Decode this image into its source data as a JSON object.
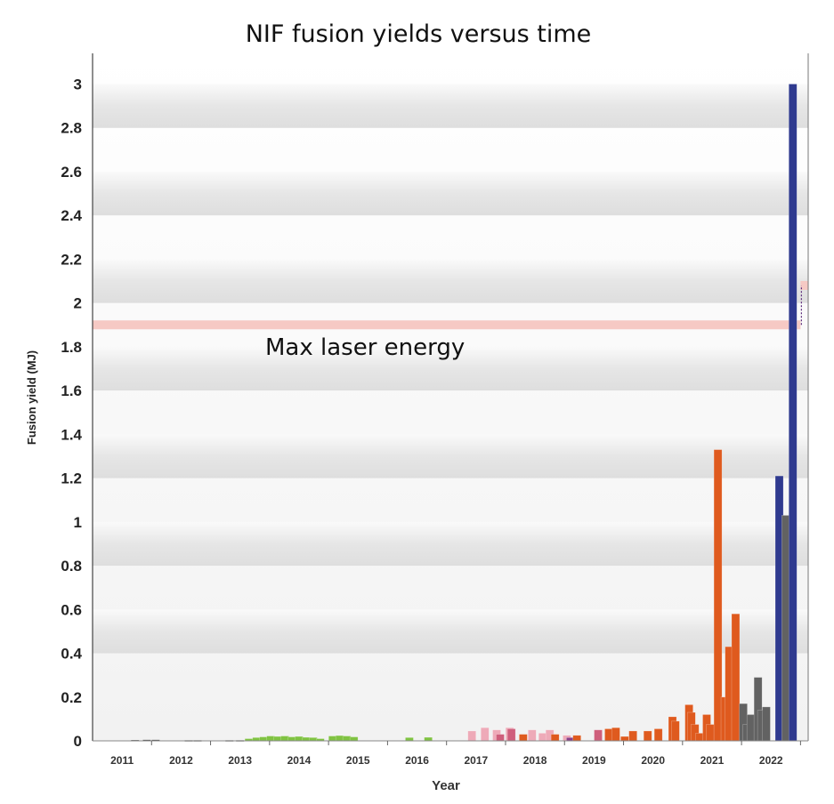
{
  "chart_data": {
    "type": "bar",
    "title": "NIF fusion yields versus time",
    "xlabel": "Year",
    "ylabel": "Fusion yield (MJ)",
    "xlim": [
      2011,
      2023.13
    ],
    "ylim": [
      0,
      3.14
    ],
    "grid": "alternating horizontal bands",
    "yticks": [
      "0",
      "0.2",
      "0.4",
      "0.6",
      "0.8",
      "1",
      "1.2",
      "1.4",
      "1.6",
      "1.8",
      "2",
      "2.2",
      "2.4",
      "2.6",
      "2.8",
      "3"
    ],
    "xticks": [
      "2011",
      "2012",
      "2013",
      "2014",
      "2015",
      "2016",
      "2017",
      "2018",
      "2019",
      "2020",
      "2021",
      "2022"
    ],
    "annotation": {
      "text": "Max laser energy",
      "segments": [
        {
          "x": [
            2011,
            2023.0
          ],
          "y": 1.9
        },
        {
          "x": [
            2023.0,
            2023.13
          ],
          "y": 2.08
        }
      ],
      "color": "#f6c9c4"
    },
    "colors": {
      "dark": "#4a4a4a",
      "green": "#80c342",
      "pink": "#eeaab8",
      "darkpink": "#cf5f7c",
      "orange": "#df5a1e",
      "purple": "#8a3f8a",
      "gray": "#626262",
      "blue": "#2f3a8f"
    },
    "bars": [
      {
        "x": 2011.72,
        "y": 0.004,
        "c": "dark"
      },
      {
        "x": 2011.92,
        "y": 0.005,
        "c": "dark"
      },
      {
        "x": 2012.07,
        "y": 0.005,
        "c": "dark"
      },
      {
        "x": 2012.63,
        "y": 0.003,
        "c": "dark"
      },
      {
        "x": 2012.78,
        "y": 0.003,
        "c": "dark"
      },
      {
        "x": 2013.32,
        "y": 0.003,
        "c": "dark"
      },
      {
        "x": 2013.5,
        "y": 0.003,
        "c": "dark"
      },
      {
        "x": 2013.65,
        "y": 0.01,
        "c": "green"
      },
      {
        "x": 2013.78,
        "y": 0.015,
        "c": "green"
      },
      {
        "x": 2013.9,
        "y": 0.018,
        "c": "green"
      },
      {
        "x": 2014.02,
        "y": 0.022,
        "c": "green"
      },
      {
        "x": 2014.14,
        "y": 0.02,
        "c": "green"
      },
      {
        "x": 2014.26,
        "y": 0.022,
        "c": "green"
      },
      {
        "x": 2014.38,
        "y": 0.018,
        "c": "green"
      },
      {
        "x": 2014.5,
        "y": 0.02,
        "c": "green"
      },
      {
        "x": 2014.62,
        "y": 0.016,
        "c": "green"
      },
      {
        "x": 2014.74,
        "y": 0.015,
        "c": "green"
      },
      {
        "x": 2014.86,
        "y": 0.01,
        "c": "green"
      },
      {
        "x": 2015.07,
        "y": 0.022,
        "c": "green"
      },
      {
        "x": 2015.19,
        "y": 0.024,
        "c": "green"
      },
      {
        "x": 2015.31,
        "y": 0.022,
        "c": "green"
      },
      {
        "x": 2015.43,
        "y": 0.018,
        "c": "green"
      },
      {
        "x": 2016.37,
        "y": 0.015,
        "c": "green"
      },
      {
        "x": 2016.69,
        "y": 0.016,
        "c": "green"
      },
      {
        "x": 2017.43,
        "y": 0.045,
        "c": "pink"
      },
      {
        "x": 2017.65,
        "y": 0.06,
        "c": "pink"
      },
      {
        "x": 2017.85,
        "y": 0.05,
        "c": "pink"
      },
      {
        "x": 2017.91,
        "y": 0.03,
        "c": "darkpink"
      },
      {
        "x": 2018.07,
        "y": 0.06,
        "c": "pink"
      },
      {
        "x": 2018.1,
        "y": 0.055,
        "c": "darkpink"
      },
      {
        "x": 2018.3,
        "y": 0.03,
        "c": "orange"
      },
      {
        "x": 2018.45,
        "y": 0.05,
        "c": "pink"
      },
      {
        "x": 2018.63,
        "y": 0.035,
        "c": "pink"
      },
      {
        "x": 2018.75,
        "y": 0.05,
        "c": "pink"
      },
      {
        "x": 2018.84,
        "y": 0.03,
        "c": "orange"
      },
      {
        "x": 2019.04,
        "y": 0.025,
        "c": "pink"
      },
      {
        "x": 2019.1,
        "y": 0.015,
        "c": "purple"
      },
      {
        "x": 2019.21,
        "y": 0.025,
        "c": "orange"
      },
      {
        "x": 2019.57,
        "y": 0.05,
        "c": "darkpink"
      },
      {
        "x": 2019.75,
        "y": 0.055,
        "c": "orange"
      },
      {
        "x": 2019.87,
        "y": 0.06,
        "c": "orange"
      },
      {
        "x": 2020.02,
        "y": 0.02,
        "c": "orange"
      },
      {
        "x": 2020.16,
        "y": 0.045,
        "c": "orange"
      },
      {
        "x": 2020.41,
        "y": 0.045,
        "c": "orange"
      },
      {
        "x": 2020.59,
        "y": 0.055,
        "c": "orange"
      },
      {
        "x": 2020.83,
        "y": 0.11,
        "c": "orange"
      },
      {
        "x": 2020.88,
        "y": 0.09,
        "c": "orange"
      },
      {
        "x": 2021.11,
        "y": 0.165,
        "c": "orange"
      },
      {
        "x": 2021.15,
        "y": 0.13,
        "c": "orange"
      },
      {
        "x": 2021.21,
        "y": 0.075,
        "c": "orange"
      },
      {
        "x": 2021.29,
        "y": 0.035,
        "c": "orange"
      },
      {
        "x": 2021.41,
        "y": 0.12,
        "c": "orange"
      },
      {
        "x": 2021.47,
        "y": 0.075,
        "c": "orange"
      },
      {
        "x": 2021.6,
        "y": 1.33,
        "c": "orange"
      },
      {
        "x": 2021.72,
        "y": 0.2,
        "c": "orange"
      },
      {
        "x": 2021.79,
        "y": 0.43,
        "c": "orange"
      },
      {
        "x": 2021.9,
        "y": 0.58,
        "c": "orange"
      },
      {
        "x": 2022.03,
        "y": 0.17,
        "c": "gray"
      },
      {
        "x": 2022.09,
        "y": 0.075,
        "c": "gray"
      },
      {
        "x": 2022.16,
        "y": 0.12,
        "c": "gray"
      },
      {
        "x": 2022.28,
        "y": 0.29,
        "c": "gray"
      },
      {
        "x": 2022.34,
        "y": 0.14,
        "c": "gray"
      },
      {
        "x": 2022.42,
        "y": 0.155,
        "c": "gray"
      },
      {
        "x": 2022.64,
        "y": 1.21,
        "c": "blue"
      },
      {
        "x": 2022.75,
        "y": 1.03,
        "c": "gray"
      },
      {
        "x": 2022.87,
        "y": 3.0,
        "c": "blue"
      }
    ]
  }
}
